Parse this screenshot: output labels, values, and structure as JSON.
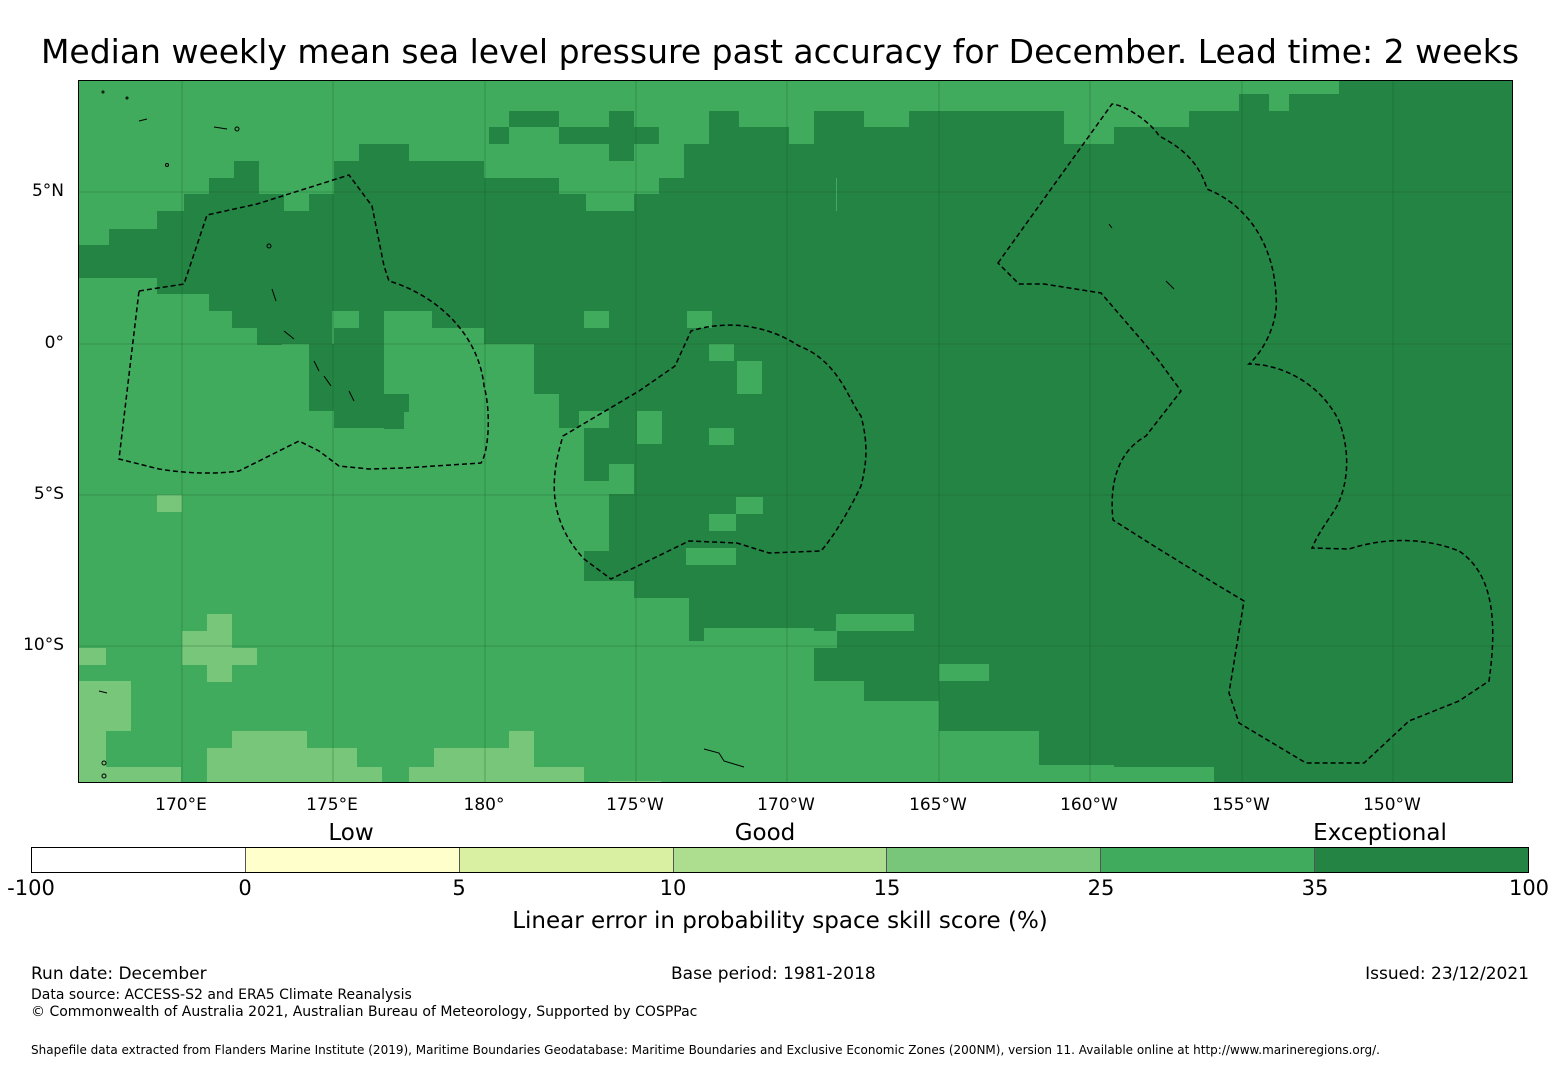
{
  "title": "Median weekly mean sea level pressure past accuracy for December. Lead time: 2 weeks",
  "map": {
    "lat_labels": [
      "5°N",
      "0°",
      "5°S",
      "10°S"
    ],
    "lon_labels": [
      "170°E",
      "175°E",
      "180°",
      "175°W",
      "170°W",
      "165°W",
      "160°W",
      "155°W",
      "150°W"
    ],
    "lat_range": [
      -14.5,
      8.5
    ],
    "lon_range": [
      "166.6°E",
      "146.2°W"
    ],
    "colors": {
      "ocean_mid": "#41ab5d",
      "ocean_high": "#238443",
      "ocean_low": "#78c679",
      "eez_line": "#000000"
    },
    "icons": [
      "eez-boundary-dashed-line",
      "island-coastline-outline"
    ]
  },
  "legend": {
    "categories": [
      "Low",
      "Good",
      "Exceptional"
    ],
    "ticks": [
      "-100",
      "0",
      "5",
      "10",
      "15",
      "25",
      "35",
      "100"
    ],
    "colors": [
      "#ffffff",
      "#ffffcc",
      "#d9f0a3",
      "#addd8e",
      "#78c679",
      "#41ab5d",
      "#238443"
    ],
    "title": "Linear error in probability space skill score (%)"
  },
  "footer": {
    "run_date": "Run date: December",
    "base_period": "Base period: 1981-2018",
    "issued": "Issued: 23/12/2021",
    "data_source": "Data source: ACCESS-S2 and ERA5 Climate Reanalysis",
    "copyright": "© Commonwealth of Australia 2021, Australian Bureau of Meteorology, Supported by COSPPac",
    "shapefile": "Shapefile data extracted from Flanders Marine Institute (2019), Maritime Boundaries Geodatabase: Maritime Boundaries and Exclusive Economic Zones (200NM), version 11. Available online at http://www.marineregions.org/."
  }
}
